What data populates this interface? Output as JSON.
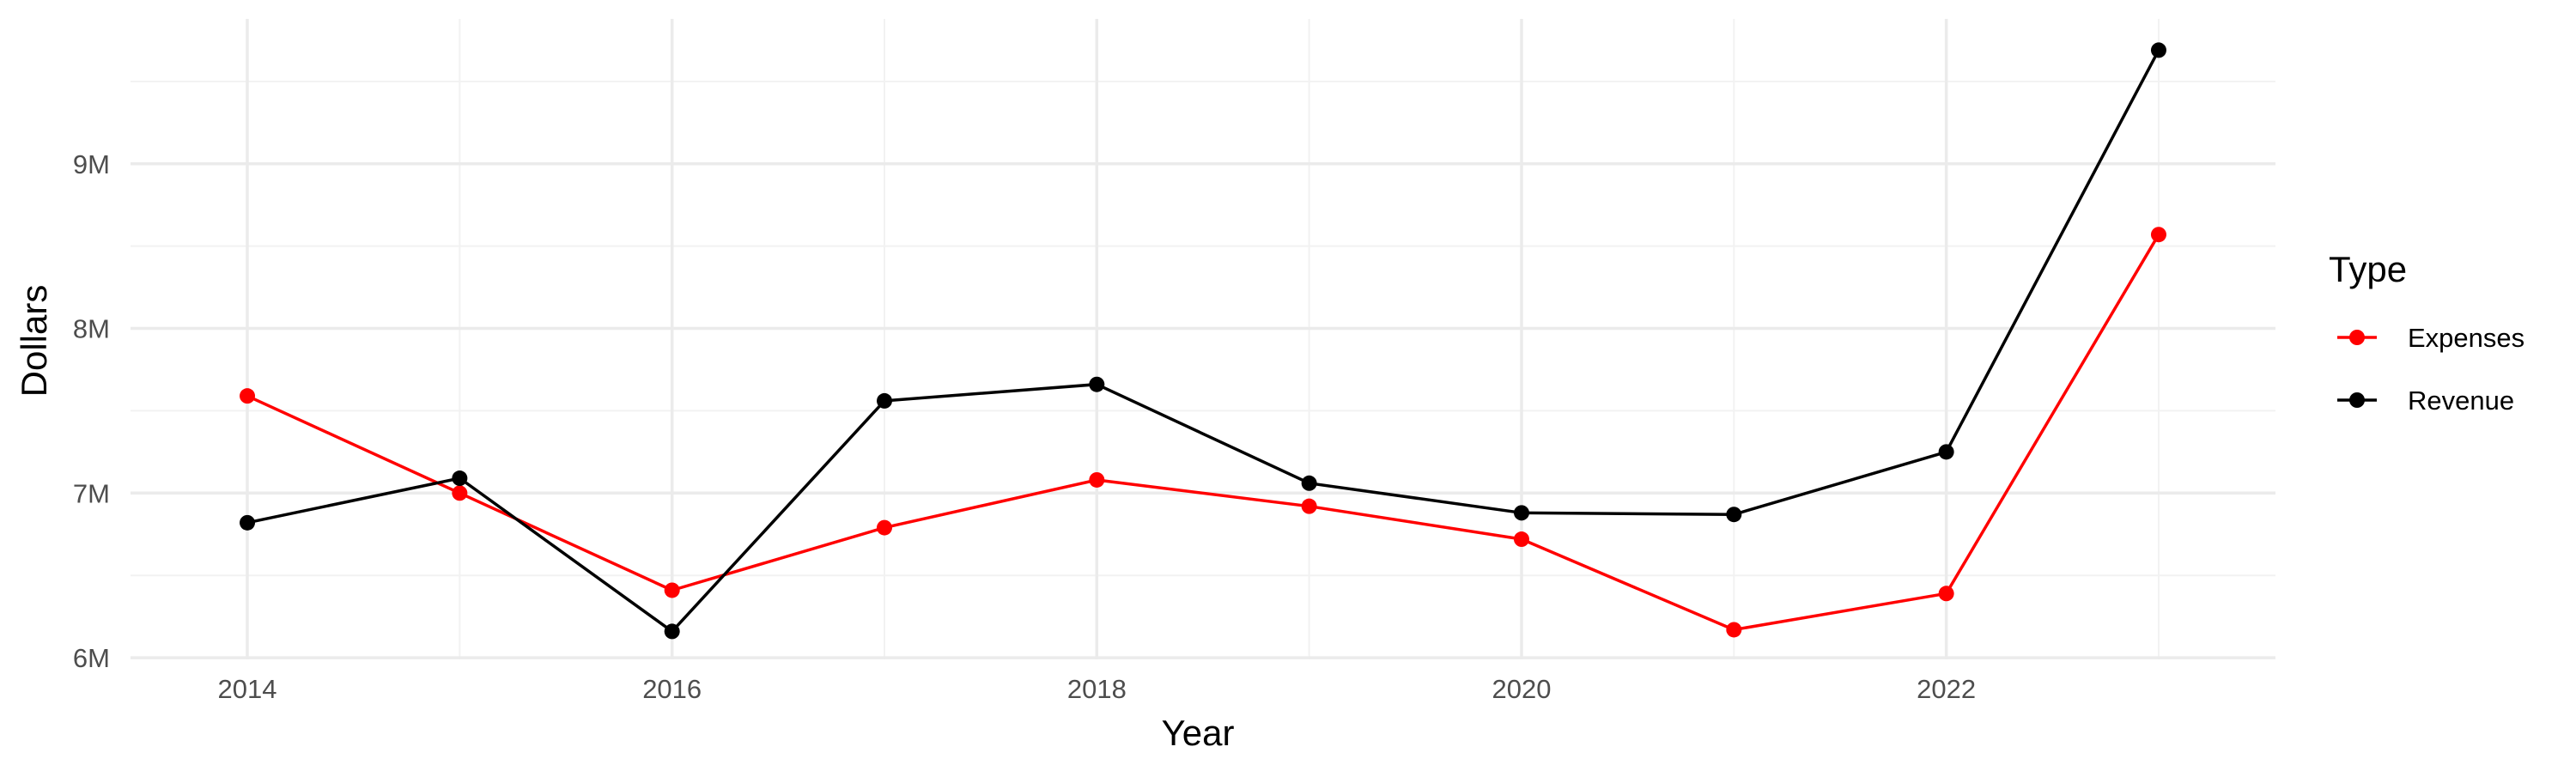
{
  "chart_data": {
    "type": "line",
    "xlabel": "Year",
    "ylabel": "Dollars",
    "x": [
      2014,
      2015,
      2016,
      2017,
      2018,
      2019,
      2020,
      2021,
      2022,
      2023
    ],
    "x_ticks": [
      2014,
      2016,
      2018,
      2020,
      2022
    ],
    "x_tick_labels": [
      "2014",
      "2016",
      "2018",
      "2020",
      "2022"
    ],
    "y_ticks": [
      6000000,
      7000000,
      8000000,
      9000000
    ],
    "y_tick_labels": [
      "6M",
      "7M",
      "8M",
      "9M"
    ],
    "xlim": [
      2013.45,
      2023.55
    ],
    "ylim": [
      5990000,
      9880000
    ],
    "grid": true,
    "legend": {
      "title": "Type",
      "position": "right"
    },
    "series": [
      {
        "name": "Expenses",
        "color": "#ff0000",
        "values": [
          7590000,
          7000000,
          6410000,
          6790000,
          7080000,
          6920000,
          6720000,
          6170000,
          6390000,
          8570000
        ]
      },
      {
        "name": "Revenue",
        "color": "#000000",
        "values": [
          6820000,
          7090000,
          6160000,
          7560000,
          7660000,
          7060000,
          6880000,
          6870000,
          7250000,
          9690000
        ]
      }
    ]
  }
}
